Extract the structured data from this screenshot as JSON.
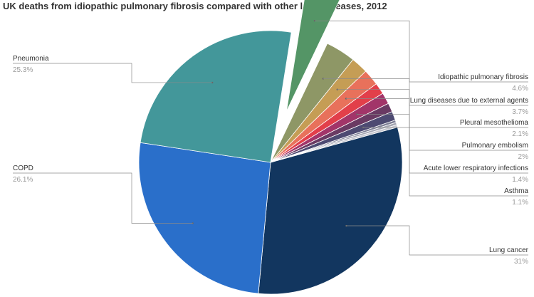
{
  "title": "UK deaths from idiopathic pulmonary fibrosis compared with other lung diseases, 2012",
  "chart_data": {
    "type": "pie",
    "title": "UK deaths from idiopathic pulmonary fibrosis compared with other lung diseases, 2012",
    "legend": "none",
    "slices": [
      {
        "label": "Lung cancer",
        "value": 31,
        "value_label": "31%",
        "color": "#12365f"
      },
      {
        "label": "COPD",
        "value": 26.1,
        "value_label": "26.1%",
        "color": "#2a6fca"
      },
      {
        "label": "Pneumonia",
        "value": 25.3,
        "value_label": "25.3%",
        "color": "#43979a"
      },
      {
        "label": "Idiopathic pulmonary fibrosis",
        "value": 4.6,
        "value_label": "4.6%",
        "color": "#549566",
        "exploded": true
      },
      {
        "label": "Lung diseases due to external agents",
        "value": 3.7,
        "value_label": "3.7%",
        "color": "#8e9766"
      },
      {
        "label": "Pleural mesothelioma",
        "value": 2.1,
        "value_label": "2.1%",
        "color": "#c59d55"
      },
      {
        "label": "Pulmonary embolism",
        "value": 2,
        "value_label": "2%",
        "color": "#e8715b"
      },
      {
        "label": "",
        "value": 1.4,
        "color": "#e23f4a"
      },
      {
        "label": "Acute lower respiratory infections",
        "value": 1.4,
        "value_label": "1.4%",
        "color": "#a23569"
      },
      {
        "label": "",
        "value": 1.1,
        "color": "#6a3a63"
      },
      {
        "label": "Asthma",
        "value": 1.1,
        "value_label": "1.1%",
        "color": "#4d4a72"
      },
      {
        "label": "",
        "value": 0.3,
        "color": "#7d7f95"
      },
      {
        "label": "",
        "value": 0.3,
        "color": "#a4a6b3"
      },
      {
        "label": "",
        "value": 0.3,
        "color": "#c6c7cf"
      }
    ]
  }
}
